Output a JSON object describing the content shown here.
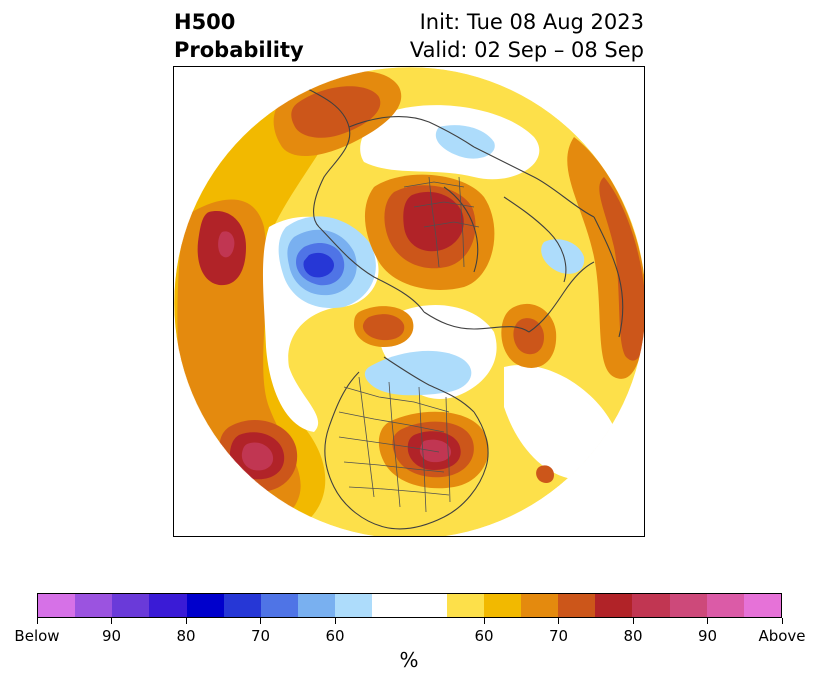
{
  "title": {
    "left_line1": "H500",
    "left_line2": "Probability",
    "right_line1": "Init: Tue 08 Aug 2023",
    "right_line2": "Valid: 02 Sep – 08 Sep"
  },
  "map": {
    "projection": "north-polar-stereographic",
    "features": [
      {
        "region": "alaska-bering",
        "category": "above",
        "level": 80
      },
      {
        "region": "siberia-north",
        "category": "above",
        "level": 60
      },
      {
        "region": "eastern-asia-mongolia",
        "category": "below",
        "level": 80
      },
      {
        "region": "eastern-europe-russia",
        "category": "above",
        "level": 80
      },
      {
        "region": "north-pacific-east",
        "category": "above",
        "level": 80
      },
      {
        "region": "north-pacific-west",
        "category": "above",
        "level": 80
      },
      {
        "region": "canada-central",
        "category": "below",
        "level": 60
      },
      {
        "region": "greenland",
        "category": "above",
        "level": 70
      },
      {
        "region": "eastern-us",
        "category": "above",
        "level": 80
      },
      {
        "region": "north-atlantic",
        "category": "above",
        "level": 70
      },
      {
        "region": "scandinavia-east",
        "category": "below",
        "level": 60
      }
    ]
  },
  "colorbar": {
    "colors": [
      "#d671e7",
      "#9b53e0",
      "#6a3ad9",
      "#3a1bd6",
      "#0000cc",
      "#2637d6",
      "#4f74e6",
      "#79b0f0",
      "#addcfb",
      "#ffffff",
      "#fde04a",
      "#f2b900",
      "#e48a0e",
      "#cc561a",
      "#b12328",
      "#c13652",
      "#cd497a",
      "#db5ba7",
      "#e672d8"
    ],
    "tick_labels": [
      "Below",
      "90",
      "80",
      "70",
      "60",
      "60",
      "70",
      "80",
      "90",
      "Above"
    ],
    "unit": "%"
  }
}
